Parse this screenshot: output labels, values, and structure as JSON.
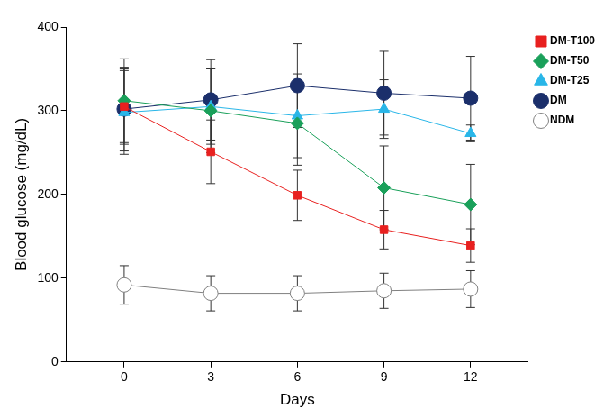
{
  "chart_data": {
    "type": "line",
    "x_label": "Days",
    "y_label": "Blood glucose (mg/dL)",
    "x": [
      0,
      3,
      6,
      9,
      12
    ],
    "xlim": [
      -2,
      14
    ],
    "xticks": [
      0,
      3,
      6,
      9,
      12
    ],
    "ylim": [
      0,
      400
    ],
    "yticks": [
      0,
      100,
      200,
      300,
      400
    ],
    "grid": false,
    "legend": "right",
    "series": [
      {
        "name": "DM-T100",
        "color": "#e8201f",
        "marker": "square",
        "values": [
          305,
          251,
          199,
          158,
          139
        ],
        "errors": [
          45,
          38,
          30,
          23,
          20
        ]
      },
      {
        "name": "DM-T50",
        "color": "#1aa05a",
        "marker": "diamond",
        "values": [
          312,
          300,
          285,
          208,
          188
        ],
        "errors": [
          50,
          50,
          50,
          50,
          48
        ]
      },
      {
        "name": "DM-T25",
        "color": "#29b6e8",
        "marker": "triangle",
        "values": [
          298,
          305,
          294,
          302,
          273
        ],
        "errors": [
          50,
          45,
          50,
          35,
          10
        ]
      },
      {
        "name": "DM",
        "color": "#1b2f6b",
        "marker": "circle",
        "values": [
          302,
          313,
          330,
          321,
          315
        ],
        "errors": [
          50,
          48,
          50,
          50,
          50
        ]
      },
      {
        "name": "NDM",
        "color": "#808080",
        "marker": "open_circle",
        "values": [
          92,
          82,
          82,
          85,
          87
        ],
        "errors": [
          23,
          21,
          21,
          21,
          22
        ]
      }
    ]
  }
}
